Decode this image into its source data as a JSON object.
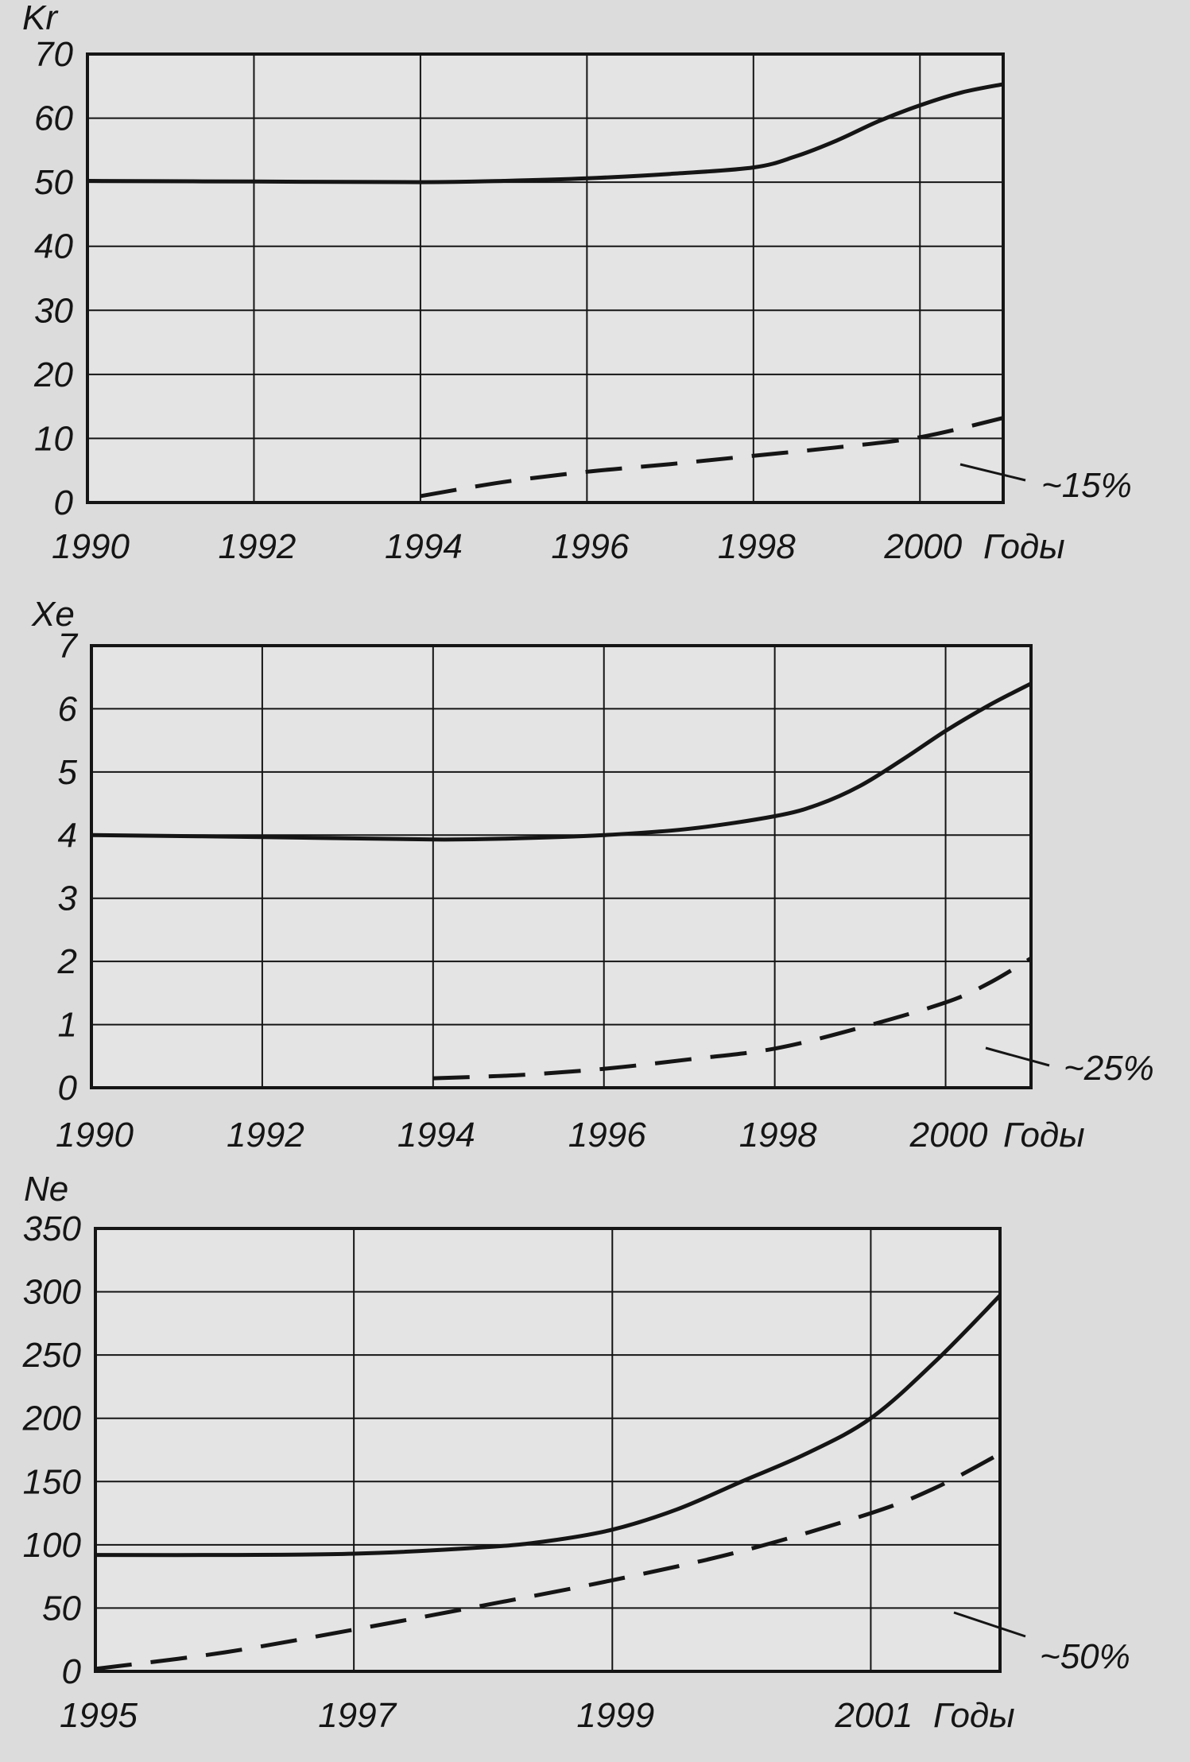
{
  "figure": {
    "colors": {
      "background": "#dcdcdc",
      "plot_background": "#e4e4e4",
      "ink": "#151515"
    }
  },
  "chart_data": [
    {
      "type": "line",
      "ylabel": "Kr",
      "xlabel": "Годы",
      "x_ticks": [
        1990,
        1992,
        1994,
        1996,
        1998,
        2000
      ],
      "xlim": [
        1990,
        2001
      ],
      "y_ticks": [
        0,
        10,
        20,
        30,
        40,
        50,
        60,
        70
      ],
      "ylim": [
        0,
        70
      ],
      "grid": true,
      "series": [
        {
          "style": "solid",
          "points": [
            [
              1990,
              50.2
            ],
            [
              1992,
              50.1
            ],
            [
              1994,
              50.0
            ],
            [
              1995,
              50.2
            ],
            [
              1996,
              50.6
            ],
            [
              1997,
              51.3
            ],
            [
              1998,
              52.3
            ],
            [
              1998.5,
              54.0
            ],
            [
              1999,
              56.5
            ],
            [
              1999.5,
              59.5
            ],
            [
              2000,
              62.0
            ],
            [
              2000.5,
              64.0
            ],
            [
              2001,
              65.3
            ]
          ]
        },
        {
          "style": "dashed",
          "annotation": "~15%",
          "points": [
            [
              1994,
              1.0
            ],
            [
              1995,
              3.2
            ],
            [
              1996,
              4.8
            ],
            [
              1997,
              6.0
            ],
            [
              1998,
              7.3
            ],
            [
              1999,
              8.6
            ],
            [
              2000,
              10.2
            ],
            [
              2001,
              13.2
            ]
          ]
        }
      ]
    },
    {
      "type": "line",
      "ylabel": "Xe",
      "xlabel": "Годы",
      "x_ticks": [
        1990,
        1992,
        1994,
        1996,
        1998,
        2000
      ],
      "xlim": [
        1990,
        2001
      ],
      "y_ticks": [
        0,
        1,
        2,
        3,
        4,
        5,
        6,
        7
      ],
      "ylim": [
        0,
        7
      ],
      "grid": true,
      "series": [
        {
          "style": "solid",
          "points": [
            [
              1990,
              4.0
            ],
            [
              1992,
              3.97
            ],
            [
              1994,
              3.93
            ],
            [
              1995,
              3.95
            ],
            [
              1996,
              4.0
            ],
            [
              1997,
              4.1
            ],
            [
              1998,
              4.3
            ],
            [
              1998.5,
              4.48
            ],
            [
              1999,
              4.78
            ],
            [
              1999.5,
              5.2
            ],
            [
              2000,
              5.65
            ],
            [
              2000.5,
              6.05
            ],
            [
              2001,
              6.4
            ]
          ]
        },
        {
          "style": "dashed",
          "annotation": "~25%",
          "points": [
            [
              1994,
              0.15
            ],
            [
              1995,
              0.2
            ],
            [
              1996,
              0.3
            ],
            [
              1997,
              0.45
            ],
            [
              1998,
              0.62
            ],
            [
              1999,
              0.95
            ],
            [
              2000,
              1.35
            ],
            [
              2000.5,
              1.65
            ],
            [
              2001,
              2.05
            ]
          ]
        }
      ]
    },
    {
      "type": "line",
      "ylabel": "Ne",
      "xlabel": "Годы",
      "x_ticks": [
        1995,
        1997,
        1999,
        2001
      ],
      "xlim": [
        1995,
        2002
      ],
      "y_ticks": [
        0,
        50,
        100,
        150,
        200,
        250,
        300,
        350
      ],
      "ylim": [
        0,
        350
      ],
      "grid": true,
      "series": [
        {
          "style": "solid",
          "points": [
            [
              1995,
              92
            ],
            [
              1996,
              92
            ],
            [
              1997,
              93
            ],
            [
              1998,
              98
            ],
            [
              1998.5,
              103
            ],
            [
              1999,
              112
            ],
            [
              1999.5,
              128
            ],
            [
              2000,
              150
            ],
            [
              2000.5,
              172
            ],
            [
              2001,
              200
            ],
            [
              2001.5,
              245
            ],
            [
              2002,
              297
            ]
          ]
        },
        {
          "style": "dashed",
          "annotation": "~50%",
          "points": [
            [
              1995,
              2
            ],
            [
              1996,
              15
            ],
            [
              1997,
              33
            ],
            [
              1998,
              52
            ],
            [
              1999,
              72
            ],
            [
              2000,
              95
            ],
            [
              2001,
              125
            ],
            [
              2001.5,
              145
            ],
            [
              2002,
              172
            ]
          ]
        }
      ]
    }
  ]
}
